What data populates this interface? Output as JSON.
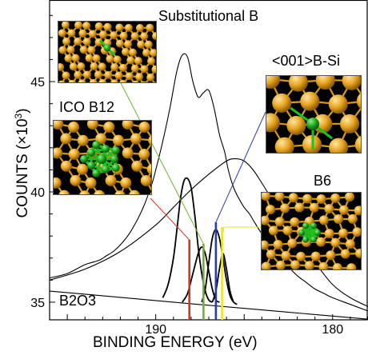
{
  "chart_data": {
    "type": "line",
    "title": "",
    "xlabel": "BINDING ENERGY (eV)",
    "ylabel": "COUNTS (×10³)",
    "ylabel_parts": {
      "main": "COUNTS (",
      "mult": "×",
      "base": "10",
      "exp": "3",
      "close": ")"
    },
    "x_reversed": true,
    "xlim": [
      196,
      178
    ],
    "ylim": [
      34.2,
      48.7
    ],
    "x_ticks": [
      190,
      180
    ],
    "y_ticks": [
      35,
      40,
      45
    ],
    "grid": false,
    "series": [
      {
        "role": "measured",
        "color": "#000000",
        "x": [
          196,
          195,
          194,
          193.2,
          192.8,
          192.4,
          192,
          191.5,
          191,
          190.6,
          190.2,
          190,
          189.6,
          189.2,
          188.8,
          188.5,
          188.2,
          187.9,
          187.6,
          187.3,
          187,
          186.7,
          186.4,
          186.1,
          185.9,
          185.6,
          185.3,
          185,
          184.7,
          184.4,
          184,
          183.5,
          183,
          182.5,
          182,
          181.5,
          181,
          180.5,
          180,
          179,
          178
        ],
        "y": [
          36.1,
          36.3,
          36.7,
          36.9,
          37.1,
          37.3,
          37.6,
          38.1,
          38.8,
          39.5,
          40.4,
          41.0,
          42.3,
          43.8,
          45.5,
          46.2,
          46.1,
          45.0,
          44.3,
          44.5,
          44.6,
          43.8,
          42.6,
          41.8,
          41.0,
          40.2,
          39.7,
          39.3,
          39.0,
          38.6,
          38.1,
          37.6,
          37.1,
          36.6,
          36.2,
          35.9,
          35.6,
          35.4,
          35.2,
          34.9,
          34.6
        ]
      },
      {
        "role": "B2O3-background",
        "color": "#000000",
        "x": [
          196,
          192,
          188,
          184,
          180,
          178
        ],
        "y": [
          35.5,
          35.22,
          34.93,
          34.65,
          34.37,
          34.23
        ]
      },
      {
        "role": "broad-component",
        "color": "#000000",
        "x": [
          196,
          194,
          192,
          190,
          189,
          188,
          187,
          186,
          185.5,
          185,
          184.5,
          184,
          183,
          182,
          181,
          180,
          179,
          178
        ],
        "y": [
          36.0,
          36.5,
          37.3,
          38.5,
          39.3,
          40.1,
          40.8,
          41.4,
          41.5,
          41.4,
          41.0,
          40.4,
          39.1,
          37.8,
          36.8,
          35.8,
          35.2,
          34.8
        ]
      },
      {
        "role": "ICO B12 peak",
        "color": "#000000",
        "x": [
          189.6,
          189.3,
          189,
          188.8,
          188.6,
          188.4,
          188.2,
          188,
          187.8,
          187.6,
          187.4,
          187.2,
          187,
          186.8
        ],
        "y": [
          35.2,
          35.8,
          37.0,
          38.3,
          39.7,
          40.5,
          40.6,
          40.2,
          39.0,
          37.5,
          36.3,
          35.5,
          35.1,
          35.0
        ]
      },
      {
        "role": "Substitutional B peak",
        "color": "#000000",
        "x": [
          188.5,
          188.2,
          187.9,
          187.6,
          187.4,
          187.2,
          187,
          186.8,
          186.6,
          186.4
        ],
        "y": [
          35.0,
          35.4,
          36.3,
          37.2,
          37.5,
          37.2,
          36.4,
          35.6,
          35.1,
          35.0
        ]
      },
      {
        "role": "<001>B-Si peak",
        "color": "#000000",
        "x": [
          187.4,
          187.2,
          187,
          186.8,
          186.6,
          186.4,
          186.2,
          186,
          185.8,
          185.6,
          185.4
        ],
        "y": [
          35.0,
          35.6,
          36.8,
          37.9,
          38.3,
          37.9,
          37.0,
          36.0,
          35.3,
          35.0,
          34.9
        ]
      },
      {
        "role": "B6 peak",
        "color": "#000000",
        "x": [
          186.8,
          186.6,
          186.4,
          186.2,
          186,
          185.8,
          185.6
        ],
        "y": [
          35.0,
          35.5,
          36.5,
          37.2,
          36.5,
          35.5,
          35.0
        ]
      }
    ],
    "markers": [
      {
        "name": "ICO B12",
        "x": 188.1,
        "color": "#e0301e"
      },
      {
        "name": "Substitutional B",
        "x": 187.3,
        "color": "#6ab52b"
      },
      {
        "name": "<001>B-Si",
        "x": 186.6,
        "color": "#2a3fa8"
      },
      {
        "name": "B6",
        "x": 186.25,
        "color": "#f0e22c"
      }
    ],
    "annotations": [
      {
        "text": "Substitutional B"
      },
      {
        "text": "<001>B-Si"
      },
      {
        "text": "ICO B12"
      },
      {
        "text": "B6"
      },
      {
        "text": "B2O3"
      }
    ]
  }
}
